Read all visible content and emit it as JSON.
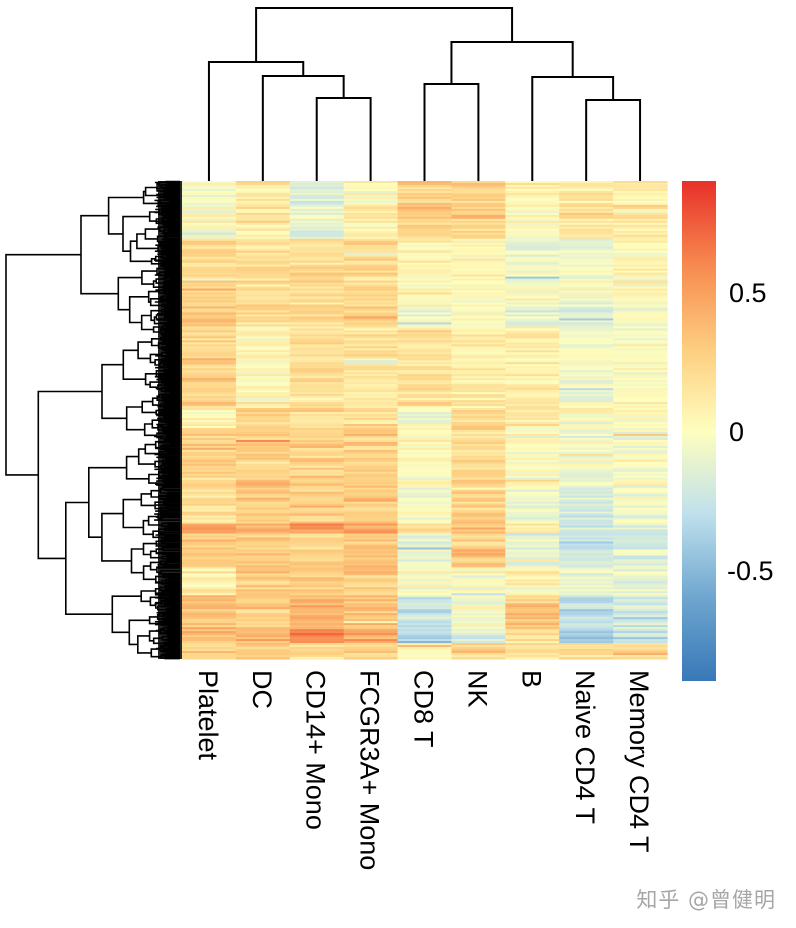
{
  "chart_data": {
    "type": "heatmap",
    "title": "",
    "columns": [
      "Platelet",
      "DC",
      "CD14+ Mono",
      "FCGR3A+ Mono",
      "CD8 T",
      "NK",
      "B",
      "Naive CD4 T",
      "Memory CD4 T"
    ],
    "colorbar": {
      "ticks": [
        0.5,
        0,
        -0.5
      ],
      "tick_labels": [
        "0.5",
        "0",
        "-0.5"
      ],
      "range": [
        -0.9,
        0.9
      ],
      "colors": [
        "#3878b8",
        "#6fa6cf",
        "#bfe0ec",
        "#fefebe",
        "#fdcd7f",
        "#f7894f",
        "#e8302a"
      ]
    },
    "row_dendrogram": "hierarchical clustering of genes (many rows)",
    "column_dendrogram": "hierarchical clustering of cell types",
    "row_blocks": [
      {
        "frac": 0.05,
        "values": [
          0.0,
          0.15,
          -0.15,
          0.05,
          0.28,
          0.28,
          0.1,
          0.15,
          0.15
        ]
      },
      {
        "frac": 0.07,
        "values": [
          0.0,
          0.15,
          -0.1,
          0.1,
          0.28,
          0.28,
          0.05,
          0.2,
          0.15
        ]
      },
      {
        "frac": 0.14,
        "values": [
          0.25,
          0.2,
          0.2,
          0.2,
          0.05,
          0.05,
          -0.05,
          -0.05,
          0.05
        ]
      },
      {
        "frac": 0.04,
        "values": [
          0.3,
          0.2,
          0.25,
          0.25,
          -0.05,
          -0.05,
          -0.1,
          -0.15,
          -0.05
        ]
      },
      {
        "frac": 0.17,
        "values": [
          0.25,
          0.05,
          0.2,
          0.15,
          0.15,
          0.1,
          0.1,
          -0.05,
          0.0
        ]
      },
      {
        "frac": 0.04,
        "values": [
          0.05,
          0.25,
          0.2,
          0.2,
          -0.05,
          0.2,
          0.1,
          0.0,
          0.0
        ]
      },
      {
        "frac": 0.1,
        "values": [
          0.25,
          0.25,
          0.25,
          0.25,
          0.05,
          0.2,
          0.0,
          -0.05,
          -0.05
        ]
      },
      {
        "frac": 0.1,
        "values": [
          0.2,
          0.3,
          0.3,
          0.3,
          0.0,
          0.3,
          -0.05,
          -0.15,
          -0.05
        ]
      },
      {
        "frac": 0.02,
        "values": [
          0.5,
          0.45,
          0.5,
          0.45,
          0.15,
          0.35,
          0.1,
          -0.3,
          -0.2
        ]
      },
      {
        "frac": 0.07,
        "values": [
          0.3,
          0.3,
          0.3,
          0.3,
          -0.1,
          0.3,
          -0.15,
          -0.25,
          -0.15
        ]
      },
      {
        "frac": 0.06,
        "values": [
          0.1,
          0.3,
          0.3,
          0.3,
          0.0,
          0.0,
          0.05,
          -0.1,
          -0.1
        ]
      },
      {
        "frac": 0.07,
        "values": [
          0.3,
          0.3,
          0.4,
          0.35,
          -0.25,
          -0.05,
          0.3,
          -0.3,
          -0.2
        ]
      },
      {
        "frac": 0.03,
        "values": [
          0.35,
          0.35,
          0.6,
          0.45,
          -0.4,
          -0.2,
          0.2,
          -0.4,
          -0.3
        ]
      },
      {
        "frac": 0.04,
        "values": [
          0.25,
          0.3,
          0.2,
          0.25,
          0.0,
          0.25,
          0.2,
          0.2,
          0.25
        ]
      }
    ]
  },
  "watermark": "知乎 @曾健明"
}
